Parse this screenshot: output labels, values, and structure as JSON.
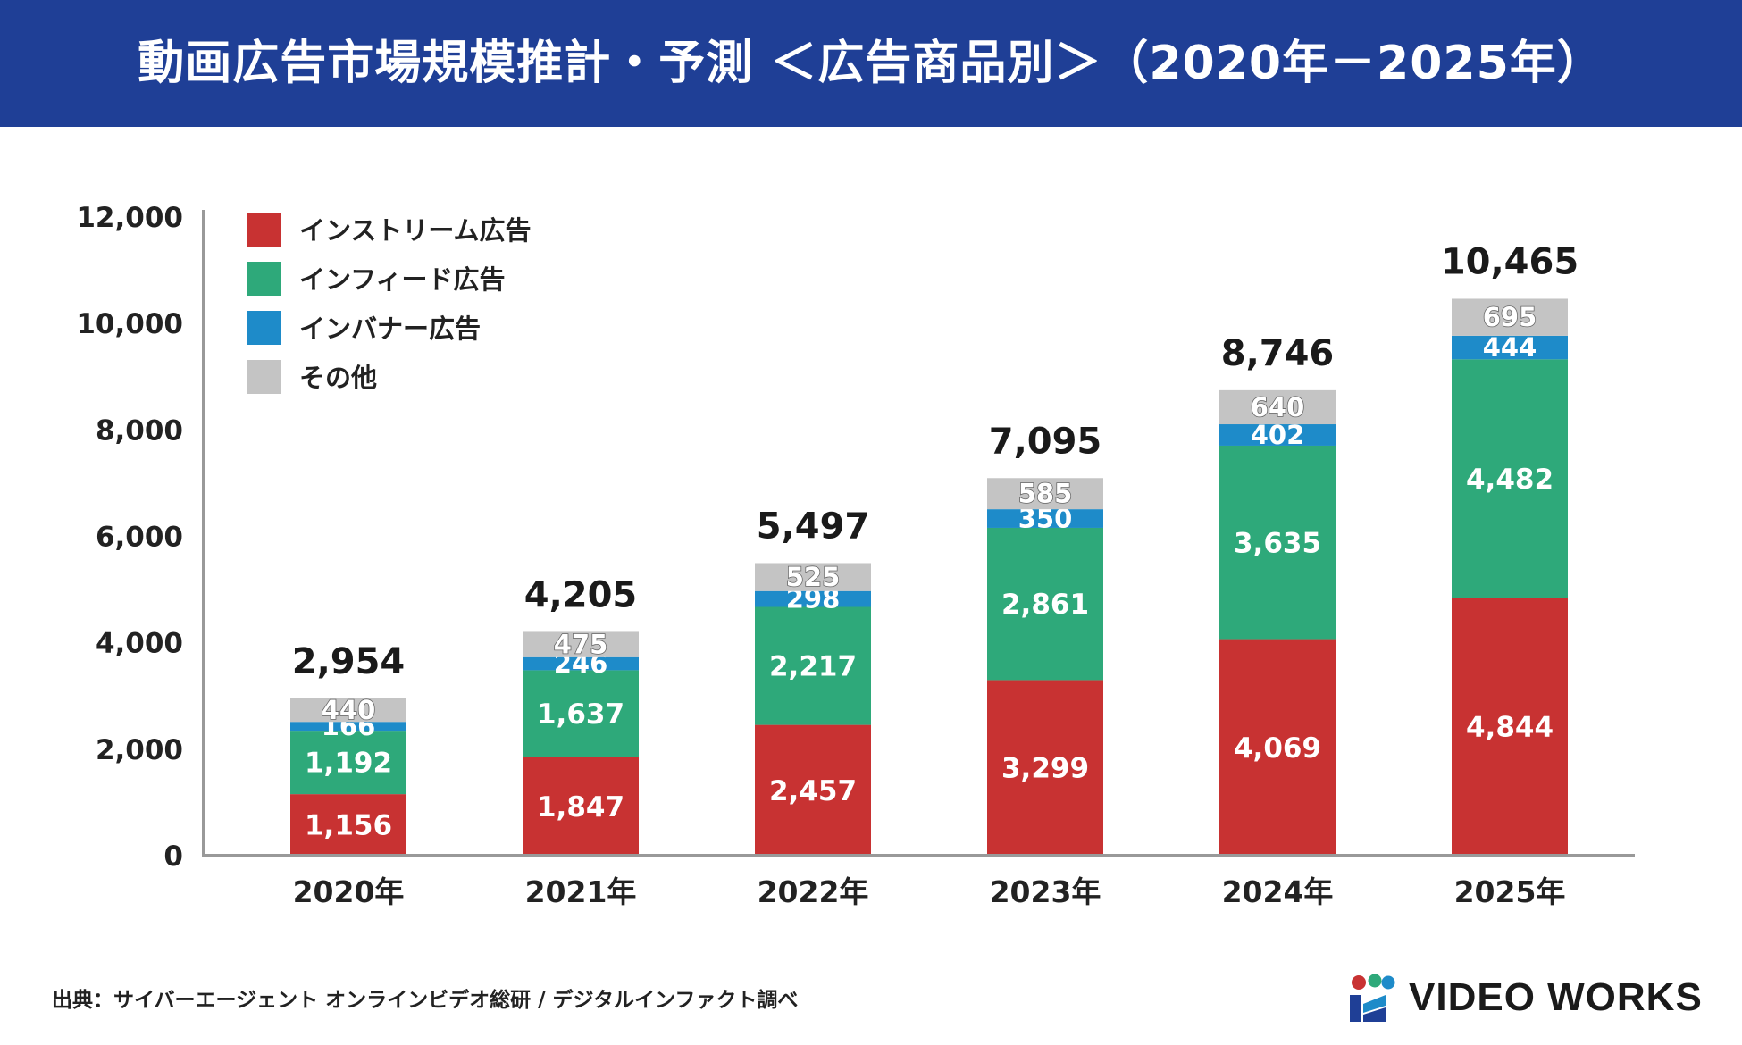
{
  "header": {
    "title": "動画広告市場規模推計・予測 ＜広告商品別＞（2020年－2025年）"
  },
  "colors": {
    "header_bg": "#1f3f96",
    "instream": "#c83232",
    "infeed": "#2ea97a",
    "inbanner": "#1e8bc9",
    "other": "#c4c4c4"
  },
  "chart_data": {
    "type": "bar",
    "stacked": true,
    "title": "動画広告市場規模推計・予測 ＜広告商品別＞（2020年－2025年）",
    "xlabel": "",
    "ylabel": "",
    "categories": [
      "2020年",
      "2021年",
      "2022年",
      "2023年",
      "2024年",
      "2025年"
    ],
    "series": [
      {
        "name": "インストリーム広告",
        "color": "#c83232",
        "values": [
          1156,
          1847,
          2457,
          3299,
          4069,
          4844
        ],
        "labels": [
          "1,156",
          "1,847",
          "2,457",
          "3,299",
          "4,069",
          "4,844"
        ]
      },
      {
        "name": "インフィード広告",
        "color": "#2ea97a",
        "values": [
          1192,
          1637,
          2217,
          2861,
          3635,
          4482
        ],
        "labels": [
          "1,192",
          "1,637",
          "2,217",
          "2,861",
          "3,635",
          "4,482"
        ]
      },
      {
        "name": "インバナー広告",
        "color": "#1e8bc9",
        "values": [
          166,
          246,
          298,
          350,
          402,
          444
        ],
        "labels": [
          "166",
          "246",
          "298",
          "350",
          "402",
          "444"
        ]
      },
      {
        "name": "その他",
        "color": "#c4c4c4",
        "values": [
          440,
          475,
          525,
          585,
          640,
          695
        ],
        "labels": [
          "440",
          "475",
          "525",
          "585",
          "640",
          "695"
        ]
      }
    ],
    "totals": [
      2954,
      4205,
      5497,
      7095,
      8746,
      10465
    ],
    "total_labels": [
      "2,954",
      "4,205",
      "5,497",
      "7,095",
      "8,746",
      "10,465"
    ],
    "ylim": [
      0,
      12000
    ],
    "yticks": [
      0,
      2000,
      4000,
      6000,
      8000,
      10000,
      12000
    ],
    "ytick_labels": [
      "0",
      "2,000",
      "4,000",
      "6,000",
      "8,000",
      "10,000",
      "12,000"
    ],
    "legend_position": "top-left",
    "grid": false
  },
  "footer": {
    "source": "出典：サイバーエージェント オンラインビデオ総研 / デジタルインファクト調べ",
    "logo_text": "VIDEO WORKS"
  }
}
